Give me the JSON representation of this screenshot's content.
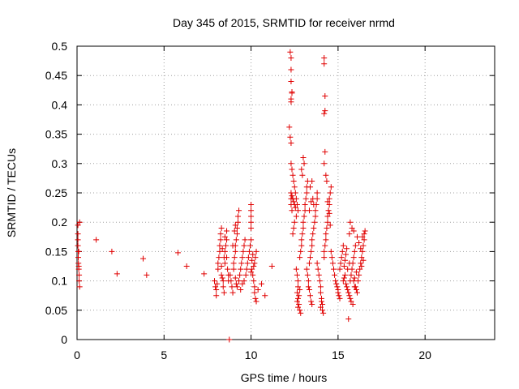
{
  "chart_data": {
    "type": "scatter",
    "title": "Day 345 of 2015, SRMTID for receiver nrmd",
    "xlabel": "GPS time / hours",
    "ylabel": "SRMTID / TECUs",
    "xlim": [
      0,
      24
    ],
    "ylim": [
      0,
      0.5
    ],
    "xticks": [
      0,
      5,
      10,
      15,
      20
    ],
    "yticks": [
      0,
      0.05,
      0.1,
      0.15,
      0.2,
      0.25,
      0.3,
      0.35,
      0.4,
      0.45,
      0.5
    ],
    "xtick_labels": [
      "0",
      "5",
      "10",
      "15",
      "20"
    ],
    "ytick_labels": [
      "0",
      "0.05",
      "0.1",
      "0.15",
      "0.2",
      "0.25",
      "0.3",
      "0.35",
      "0.4",
      "0.45",
      "0.5"
    ],
    "grid": true,
    "marker": "+",
    "color": "#e00000",
    "series": [
      {
        "name": "SRMTID",
        "points": [
          [
            0.05,
            0.195
          ],
          [
            0.05,
            0.18
          ],
          [
            0.05,
            0.17
          ],
          [
            0.05,
            0.16
          ],
          [
            0.07,
            0.15
          ],
          [
            0.07,
            0.14
          ],
          [
            0.08,
            0.13
          ],
          [
            0.1,
            0.125
          ],
          [
            0.1,
            0.12
          ],
          [
            0.12,
            0.11
          ],
          [
            0.12,
            0.1
          ],
          [
            0.15,
            0.09
          ],
          [
            0.15,
            0.2
          ],
          [
            0.1,
            0.15
          ],
          [
            1.1,
            0.17
          ],
          [
            2.0,
            0.15
          ],
          [
            2.3,
            0.112
          ],
          [
            3.8,
            0.138
          ],
          [
            4.0,
            0.11
          ],
          [
            5.8,
            0.148
          ],
          [
            6.3,
            0.125
          ],
          [
            7.3,
            0.112
          ],
          [
            7.9,
            0.1
          ],
          [
            7.95,
            0.09
          ],
          [
            8.0,
            0.085
          ],
          [
            8.0,
            0.075
          ],
          [
            8.05,
            0.095
          ],
          [
            8.1,
            0.12
          ],
          [
            8.1,
            0.13
          ],
          [
            8.15,
            0.14
          ],
          [
            8.2,
            0.15
          ],
          [
            8.2,
            0.16
          ],
          [
            8.25,
            0.17
          ],
          [
            8.25,
            0.18
          ],
          [
            8.3,
            0.19
          ],
          [
            8.3,
            0.11
          ],
          [
            8.35,
            0.105
          ],
          [
            8.4,
            0.1
          ],
          [
            8.4,
            0.09
          ],
          [
            8.45,
            0.08
          ],
          [
            8.5,
            0.13
          ],
          [
            8.5,
            0.15
          ],
          [
            8.55,
            0.16
          ],
          [
            8.6,
            0.17
          ],
          [
            8.6,
            0.14
          ],
          [
            8.65,
            0.12
          ],
          [
            8.7,
            0.11
          ],
          [
            8.7,
            0.1
          ],
          [
            8.6,
            0.185
          ],
          [
            8.5,
            0.175
          ],
          [
            8.3,
            0.125
          ],
          [
            8.45,
            0.14
          ],
          [
            8.35,
            0.155
          ],
          [
            8.8,
            0.11
          ],
          [
            8.85,
            0.1
          ],
          [
            8.9,
            0.09
          ],
          [
            8.95,
            0.08
          ],
          [
            9.0,
            0.12
          ],
          [
            9.0,
            0.13
          ],
          [
            9.05,
            0.14
          ],
          [
            9.1,
            0.15
          ],
          [
            9.1,
            0.16
          ],
          [
            9.15,
            0.17
          ],
          [
            9.2,
            0.18
          ],
          [
            9.2,
            0.19
          ],
          [
            9.25,
            0.2
          ],
          [
            9.25,
            0.21
          ],
          [
            9.3,
            0.22
          ],
          [
            9.1,
            0.105
          ],
          [
            9.15,
            0.095
          ],
          [
            9.2,
            0.09
          ],
          [
            9.3,
            0.1
          ],
          [
            9.35,
            0.11
          ],
          [
            9.4,
            0.12
          ],
          [
            9.45,
            0.13
          ],
          [
            9.5,
            0.14
          ],
          [
            9.55,
            0.15
          ],
          [
            9.6,
            0.16
          ],
          [
            9.65,
            0.17
          ],
          [
            9.4,
            0.085
          ],
          [
            9.5,
            0.095
          ],
          [
            9.6,
            0.1
          ],
          [
            9.7,
            0.11
          ],
          [
            9.75,
            0.12
          ],
          [
            9.8,
            0.13
          ],
          [
            9.85,
            0.14
          ],
          [
            9.9,
            0.15
          ],
          [
            9.95,
            0.16
          ],
          [
            10.0,
            0.17
          ],
          [
            10.0,
            0.19
          ],
          [
            10.0,
            0.2
          ],
          [
            10.0,
            0.21
          ],
          [
            10.0,
            0.22
          ],
          [
            10.0,
            0.23
          ],
          [
            9.05,
            0.185
          ],
          [
            9.1,
            0.195
          ],
          [
            8.95,
            0.16
          ],
          [
            10.05,
            0.12
          ],
          [
            10.1,
            0.11
          ],
          [
            10.15,
            0.1
          ],
          [
            10.2,
            0.09
          ],
          [
            10.2,
            0.08
          ],
          [
            10.25,
            0.07
          ],
          [
            10.3,
            0.065
          ],
          [
            10.3,
            0.15
          ],
          [
            10.25,
            0.14
          ],
          [
            10.2,
            0.13
          ],
          [
            10.15,
            0.125
          ],
          [
            10.1,
            0.145
          ],
          [
            10.05,
            0.135
          ],
          [
            10.0,
            0.115
          ],
          [
            10.4,
            0.085
          ],
          [
            10.6,
            0.095
          ],
          [
            10.8,
            0.075
          ],
          [
            11.2,
            0.125
          ],
          [
            12.3,
            0.46
          ],
          [
            12.3,
            0.44
          ],
          [
            12.35,
            0.42
          ],
          [
            12.3,
            0.41
          ],
          [
            12.25,
            0.49
          ],
          [
            12.3,
            0.48
          ],
          [
            12.35,
            0.422
          ],
          [
            12.3,
            0.405
          ],
          [
            12.2,
            0.362
          ],
          [
            12.25,
            0.345
          ],
          [
            12.3,
            0.335
          ],
          [
            12.3,
            0.3
          ],
          [
            12.35,
            0.29
          ],
          [
            12.4,
            0.28
          ],
          [
            12.45,
            0.27
          ],
          [
            12.5,
            0.26
          ],
          [
            12.55,
            0.25
          ],
          [
            12.6,
            0.24
          ],
          [
            12.65,
            0.23
          ],
          [
            12.7,
            0.22
          ],
          [
            12.3,
            0.25
          ],
          [
            12.35,
            0.245
          ],
          [
            12.4,
            0.24
          ],
          [
            12.45,
            0.235
          ],
          [
            12.5,
            0.23
          ],
          [
            12.55,
            0.225
          ],
          [
            12.6,
            0.21
          ],
          [
            12.5,
            0.2
          ],
          [
            12.45,
            0.19
          ],
          [
            12.4,
            0.18
          ],
          [
            12.35,
            0.22
          ],
          [
            12.3,
            0.23
          ],
          [
            12.3,
            0.24
          ],
          [
            12.6,
            0.12
          ],
          [
            12.65,
            0.11
          ],
          [
            12.7,
            0.1
          ],
          [
            12.7,
            0.09
          ],
          [
            12.65,
            0.08
          ],
          [
            12.7,
            0.07
          ],
          [
            12.75,
            0.06
          ],
          [
            12.8,
            0.05
          ],
          [
            12.85,
            0.045
          ],
          [
            12.7,
            0.055
          ],
          [
            12.65,
            0.065
          ],
          [
            12.75,
            0.075
          ],
          [
            12.8,
            0.085
          ],
          [
            12.8,
            0.14
          ],
          [
            12.85,
            0.15
          ],
          [
            12.9,
            0.16
          ],
          [
            12.9,
            0.17
          ],
          [
            12.95,
            0.18
          ],
          [
            13.0,
            0.19
          ],
          [
            13.0,
            0.2
          ],
          [
            13.05,
            0.21
          ],
          [
            13.1,
            0.22
          ],
          [
            13.1,
            0.23
          ],
          [
            13.15,
            0.24
          ],
          [
            13.2,
            0.25
          ],
          [
            13.2,
            0.26
          ],
          [
            13.25,
            0.27
          ],
          [
            12.9,
            0.29
          ],
          [
            12.95,
            0.28
          ],
          [
            13.0,
            0.31
          ],
          [
            13.05,
            0.3
          ],
          [
            13.2,
            0.12
          ],
          [
            13.25,
            0.11
          ],
          [
            13.3,
            0.1
          ],
          [
            13.3,
            0.09
          ],
          [
            13.35,
            0.085
          ],
          [
            13.4,
            0.075
          ],
          [
            13.45,
            0.065
          ],
          [
            13.5,
            0.06
          ],
          [
            13.35,
            0.13
          ],
          [
            13.4,
            0.14
          ],
          [
            13.45,
            0.15
          ],
          [
            13.5,
            0.16
          ],
          [
            13.5,
            0.17
          ],
          [
            13.55,
            0.18
          ],
          [
            13.6,
            0.19
          ],
          [
            13.65,
            0.2
          ],
          [
            13.7,
            0.21
          ],
          [
            13.7,
            0.22
          ],
          [
            13.75,
            0.23
          ],
          [
            13.8,
            0.24
          ],
          [
            13.8,
            0.25
          ],
          [
            13.4,
            0.26
          ],
          [
            13.5,
            0.27
          ],
          [
            13.55,
            0.24
          ],
          [
            13.6,
            0.23
          ],
          [
            13.45,
            0.235
          ],
          [
            13.35,
            0.22
          ],
          [
            13.8,
            0.13
          ],
          [
            13.85,
            0.12
          ],
          [
            13.9,
            0.11
          ],
          [
            13.95,
            0.1
          ],
          [
            14.0,
            0.09
          ],
          [
            14.0,
            0.08
          ],
          [
            14.05,
            0.07
          ],
          [
            14.1,
            0.06
          ],
          [
            14.1,
            0.05
          ],
          [
            14.15,
            0.045
          ],
          [
            14.0,
            0.055
          ],
          [
            14.05,
            0.065
          ],
          [
            14.2,
            0.14
          ],
          [
            14.2,
            0.15
          ],
          [
            14.25,
            0.16
          ],
          [
            14.3,
            0.17
          ],
          [
            14.3,
            0.18
          ],
          [
            14.35,
            0.19
          ],
          [
            14.4,
            0.2
          ],
          [
            14.4,
            0.21
          ],
          [
            14.45,
            0.22
          ],
          [
            14.5,
            0.23
          ],
          [
            14.5,
            0.24
          ],
          [
            14.55,
            0.25
          ],
          [
            14.6,
            0.26
          ],
          [
            14.2,
            0.3
          ],
          [
            14.25,
            0.32
          ],
          [
            14.3,
            0.28
          ],
          [
            14.35,
            0.27
          ],
          [
            14.4,
            0.235
          ],
          [
            14.5,
            0.215
          ],
          [
            14.55,
            0.195
          ],
          [
            14.2,
            0.48
          ],
          [
            14.2,
            0.47
          ],
          [
            14.25,
            0.415
          ],
          [
            14.25,
            0.39
          ],
          [
            14.2,
            0.385
          ],
          [
            14.6,
            0.15
          ],
          [
            14.65,
            0.14
          ],
          [
            14.7,
            0.13
          ],
          [
            14.75,
            0.12
          ],
          [
            14.8,
            0.11
          ],
          [
            14.85,
            0.1
          ],
          [
            14.9,
            0.095
          ],
          [
            14.95,
            0.09
          ],
          [
            15.0,
            0.085
          ],
          [
            15.0,
            0.08
          ],
          [
            15.05,
            0.075
          ],
          [
            15.1,
            0.07
          ],
          [
            15.1,
            0.12
          ],
          [
            15.15,
            0.13
          ],
          [
            15.2,
            0.14
          ],
          [
            15.25,
            0.15
          ],
          [
            15.3,
            0.16
          ],
          [
            15.3,
            0.1
          ],
          [
            15.35,
            0.105
          ],
          [
            15.4,
            0.11
          ],
          [
            15.45,
            0.095
          ],
          [
            15.5,
            0.09
          ],
          [
            15.55,
            0.085
          ],
          [
            15.6,
            0.08
          ],
          [
            15.65,
            0.075
          ],
          [
            15.7,
            0.07
          ],
          [
            15.35,
            0.125
          ],
          [
            15.4,
            0.135
          ],
          [
            15.45,
            0.145
          ],
          [
            15.5,
            0.155
          ],
          [
            15.7,
            0.1
          ],
          [
            15.75,
            0.11
          ],
          [
            15.8,
            0.12
          ],
          [
            15.85,
            0.13
          ],
          [
            15.9,
            0.14
          ],
          [
            15.95,
            0.15
          ],
          [
            16.0,
            0.16
          ],
          [
            16.0,
            0.09
          ],
          [
            16.05,
            0.085
          ],
          [
            16.1,
            0.08
          ],
          [
            16.15,
            0.1
          ],
          [
            16.2,
            0.11
          ],
          [
            16.25,
            0.12
          ],
          [
            16.3,
            0.13
          ],
          [
            16.35,
            0.14
          ],
          [
            16.4,
            0.15
          ],
          [
            16.45,
            0.16
          ],
          [
            16.5,
            0.17
          ],
          [
            16.5,
            0.18
          ],
          [
            16.55,
            0.185
          ],
          [
            16.4,
            0.175
          ],
          [
            16.3,
            0.155
          ],
          [
            16.2,
            0.165
          ],
          [
            16.1,
            0.175
          ],
          [
            15.9,
            0.185
          ],
          [
            16.35,
            0.125
          ],
          [
            16.45,
            0.135
          ],
          [
            15.65,
            0.18
          ],
          [
            15.7,
            0.2
          ],
          [
            15.8,
            0.19
          ],
          [
            15.9,
            0.1
          ],
          [
            15.95,
            0.105
          ],
          [
            16.05,
            0.115
          ],
          [
            15.6,
            0.035
          ],
          [
            15.85,
            0.06
          ],
          [
            15.75,
            0.065
          ],
          [
            15.95,
            0.09
          ],
          [
            15.55,
            0.12
          ],
          [
            15.65,
            0.13
          ],
          [
            8.75,
            0.0
          ]
        ]
      }
    ]
  }
}
